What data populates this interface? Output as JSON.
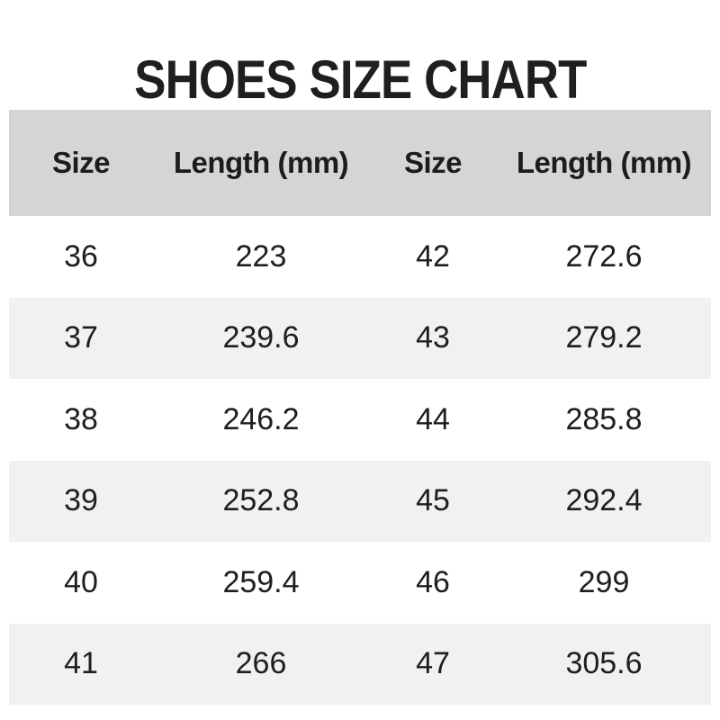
{
  "title": "SHOES SIZE CHART",
  "table": {
    "headers": [
      "Size",
      "Length (mm)",
      "Size",
      "Length (mm)"
    ],
    "rows": [
      [
        "36",
        "223",
        "42",
        "272.6"
      ],
      [
        "37",
        "239.6",
        "43",
        "279.2"
      ],
      [
        "38",
        "246.2",
        "44",
        "285.8"
      ],
      [
        "39",
        "252.8",
        "45",
        "292.4"
      ],
      [
        "40",
        "259.4",
        "46",
        "299"
      ],
      [
        "41",
        "266",
        "47",
        "305.6"
      ]
    ]
  },
  "colors": {
    "header_bg": "#d5d5d5",
    "row_bg": "#ffffff",
    "row_alt_bg": "#f1f1f1",
    "text": "#1e1e21",
    "title_text": "#1f1f22"
  },
  "chart_data": {
    "type": "table",
    "title": "SHOES SIZE CHART",
    "columns": [
      "Size",
      "Length (mm)",
      "Size",
      "Length (mm)"
    ],
    "rows": [
      [
        36,
        223,
        42,
        272.6
      ],
      [
        37,
        239.6,
        43,
        279.2
      ],
      [
        38,
        246.2,
        44,
        285.8
      ],
      [
        39,
        252.8,
        45,
        292.4
      ],
      [
        40,
        259.4,
        46,
        299
      ],
      [
        41,
        266,
        47,
        305.6
      ]
    ],
    "notes": "Two side-by-side size/length column pairs; sizes 36-41 left pair, 42-47 right pair; header row gray, body rows alternate white and light gray"
  }
}
